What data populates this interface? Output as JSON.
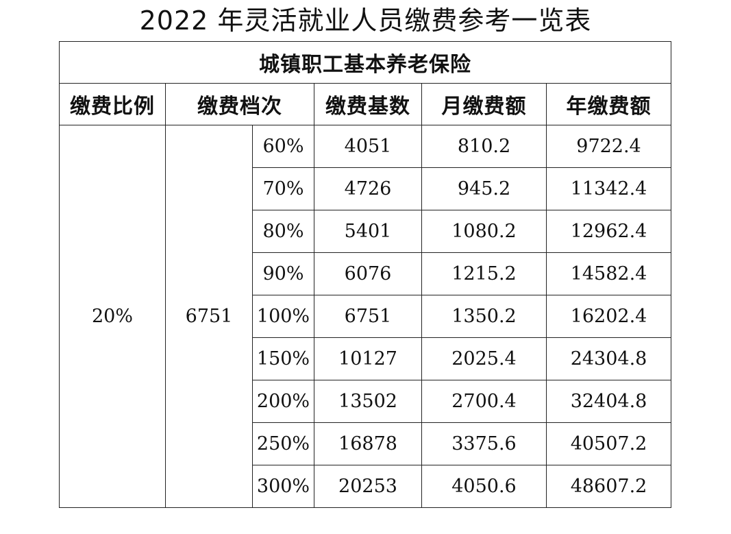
{
  "title": "2022 年灵活就业人员缴费参考一览表",
  "table": {
    "caption": "城镇职工基本养老保险",
    "headers": {
      "ratio": "缴费比例",
      "grade": "缴费档次",
      "base": "缴费基数",
      "monthly": "月缴费额",
      "annual": "年缴费额"
    },
    "ratio_value": "20%",
    "grade_base_value": "6751",
    "rows": [
      {
        "pct": "60%",
        "base": "4051",
        "monthly": "810.2",
        "annual": "9722.4"
      },
      {
        "pct": "70%",
        "base": "4726",
        "monthly": "945.2",
        "annual": "11342.4"
      },
      {
        "pct": "80%",
        "base": "5401",
        "monthly": "1080.2",
        "annual": "12962.4"
      },
      {
        "pct": "90%",
        "base": "6076",
        "monthly": "1215.2",
        "annual": "14582.4"
      },
      {
        "pct": "100%",
        "base": "6751",
        "monthly": "1350.2",
        "annual": "16202.4"
      },
      {
        "pct": "150%",
        "base": "10127",
        "monthly": "2025.4",
        "annual": "24304.8"
      },
      {
        "pct": "200%",
        "base": "13502",
        "monthly": "2700.4",
        "annual": "32404.8"
      },
      {
        "pct": "250%",
        "base": "16878",
        "monthly": "3375.6",
        "annual": "40507.2"
      },
      {
        "pct": "300%",
        "base": "20253",
        "monthly": "4050.6",
        "annual": "48607.2"
      }
    ]
  }
}
